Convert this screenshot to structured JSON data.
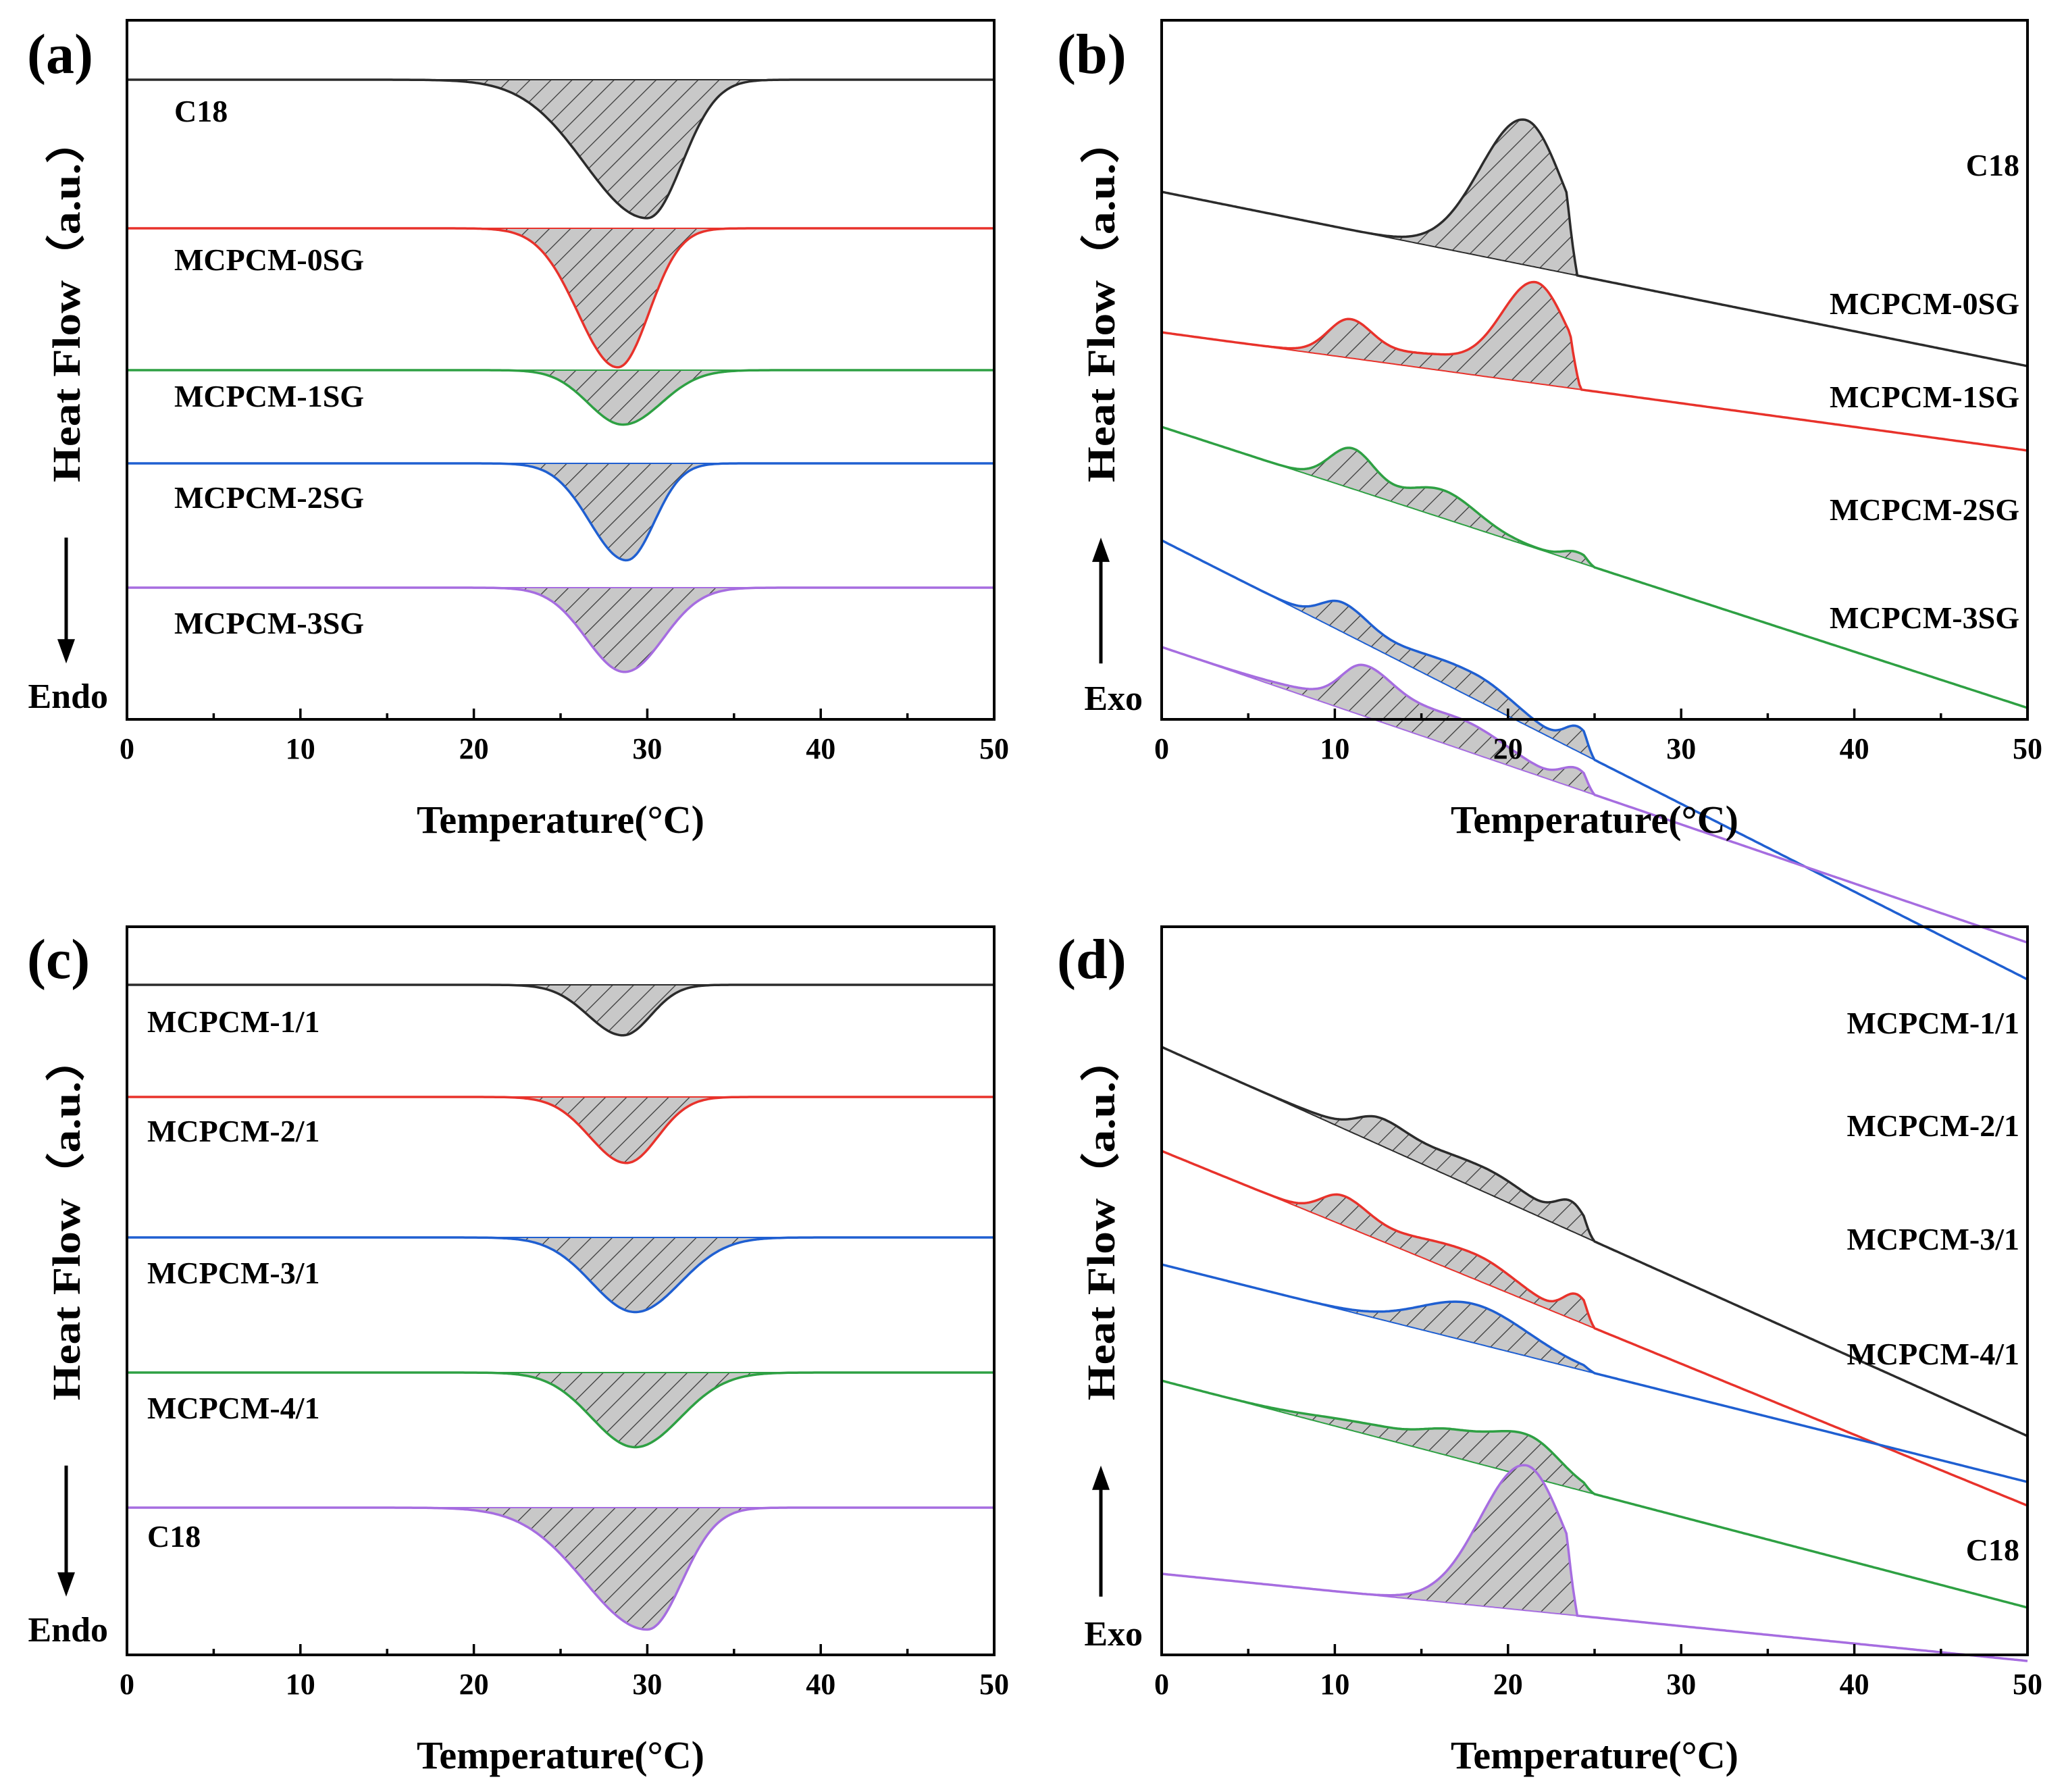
{
  "chart_data": [
    {
      "type": "line",
      "panel": "(a)",
      "xlabel": "Temperature(°C)",
      "ylabel": "Heat Flow（a.u.）",
      "direction": "Endo",
      "xlim": [
        0,
        50
      ],
      "xticks": [
        0,
        10,
        20,
        30,
        40,
        50
      ],
      "grid": false,
      "series": [
        {
          "name": "C18",
          "color": "#2b2b2b",
          "baseline": 0,
          "peaks": [
            {
              "t": 30.0,
              "h": -1.0,
              "wl": 3.6,
              "wr": 2.0
            }
          ]
        },
        {
          "name": "MCPCM-0SG",
          "color": "#e8322b",
          "baseline": -1.0,
          "peaks": [
            {
              "t": 28.3,
              "h": -0.98,
              "wl": 2.3,
              "wr": 1.8
            }
          ]
        },
        {
          "name": "MCPCM-1SG",
          "color": "#2ea043",
          "baseline": -2.0,
          "peaks": [
            {
              "t": 28.6,
              "h": -0.62,
              "wl": 2.0,
              "wr": 2.2
            }
          ]
        },
        {
          "name": "MCPCM-2SG",
          "color": "#1f5fd1",
          "baseline": -2.65,
          "peaks": [
            {
              "t": 28.8,
              "h": -0.82,
              "wl": 2.1,
              "wr": 1.6
            }
          ]
        },
        {
          "name": "MCPCM-3SG",
          "color": "#a66de0",
          "baseline": -3.5,
          "peaks": [
            {
              "t": 28.7,
              "h": -0.78,
              "wl": 2.2,
              "wr": 2.2
            }
          ]
        }
      ]
    },
    {
      "type": "line",
      "panel": "(b)",
      "xlabel": "Temperature(°C)",
      "ylabel": "Heat Flow（a.u.）",
      "direction": "Exo",
      "xlim": [
        0,
        50
      ],
      "xticks": [
        0,
        10,
        20,
        30,
        40,
        50
      ],
      "grid": false,
      "series": [
        {
          "name": "C18",
          "color": "#2b2b2b",
          "baseline": 0,
          "slope": -0.0012,
          "cutoff": 24.0,
          "peaks": [
            {
              "t": 21.0,
              "h": 1.0,
              "wl": 2.6,
              "wr": 2.2
            }
          ]
        },
        {
          "name": "MCPCM-0SG",
          "color": "#e8322b",
          "baseline": -0.95,
          "slope": -0.001,
          "cutoff": 24.2,
          "peaks": [
            {
              "t": 10.8,
              "h": 0.28,
              "wl": 1.2,
              "wr": 1.3
            },
            {
              "t": 15.5,
              "h": 0.12,
              "wl": 3.5,
              "wr": 2.5
            },
            {
              "t": 21.6,
              "h": 0.85,
              "wl": 2.0,
              "wr": 1.8
            }
          ]
        },
        {
          "name": "MCPCM-1SG",
          "color": "#2ea043",
          "baseline": -1.6,
          "slope": -0.0032,
          "cutoff": 25.0,
          "peaks": [
            {
              "t": 11.0,
              "h": 0.45,
              "wl": 1.3,
              "wr": 1.3
            },
            {
              "t": 16.2,
              "h": 0.32,
              "wl": 2.0,
              "wr": 2.0
            },
            {
              "t": 24.0,
              "h": 0.11,
              "wl": 0.8,
              "wr": 0.8
            }
          ]
        },
        {
          "name": "MCPCM-2SG",
          "color": "#1f5fd1",
          "baseline": -2.3,
          "slope": -0.0052,
          "cutoff": 25.0,
          "peaks": [
            {
              "t": 10.4,
              "h": 0.3,
              "wl": 1.2,
              "wr": 1.5
            },
            {
              "t": 18.0,
              "h": 0.3,
              "wl": 4.0,
              "wr": 2.5
            },
            {
              "t": 24.1,
              "h": 0.28,
              "wl": 0.8,
              "wr": 0.8
            }
          ]
        },
        {
          "name": "MCPCM-3SG",
          "color": "#a66de0",
          "baseline": -3.1,
          "slope": -0.0035,
          "cutoff": 25.0,
          "peaks": [
            {
              "t": 11.6,
              "h": 0.4,
              "wl": 1.2,
              "wr": 1.6
            },
            {
              "t": 17.0,
              "h": 0.36,
              "wl": 5.0,
              "wr": 3.0
            },
            {
              "t": 24.0,
              "h": 0.22,
              "wl": 0.9,
              "wr": 0.8
            }
          ]
        }
      ]
    },
    {
      "type": "line",
      "panel": "(c)",
      "xlabel": "Temperature(°C)",
      "ylabel": "Heat Flow（a.u.）",
      "direction": "Endo",
      "xlim": [
        0,
        50
      ],
      "xticks": [
        0,
        10,
        20,
        30,
        40,
        50
      ],
      "grid": false,
      "series": [
        {
          "name": "MCPCM-1/1",
          "color": "#2b2b2b",
          "baseline": 0,
          "peaks": [
            {
              "t": 28.6,
              "h": -0.65,
              "wl": 2.0,
              "wr": 1.6
            }
          ]
        },
        {
          "name": "MCPCM-2/1",
          "color": "#e8322b",
          "baseline": -0.8,
          "peaks": [
            {
              "t": 28.8,
              "h": -0.85,
              "wl": 2.1,
              "wr": 1.8
            }
          ]
        },
        {
          "name": "MCPCM-3/1",
          "color": "#1f5fd1",
          "baseline": -1.8,
          "peaks": [
            {
              "t": 29.3,
              "h": -0.85,
              "wl": 2.5,
              "wr": 2.6
            }
          ]
        },
        {
          "name": "MCPCM-4/1",
          "color": "#2ea043",
          "baseline": -2.75,
          "peaks": [
            {
              "t": 29.3,
              "h": -0.85,
              "wl": 2.5,
              "wr": 2.6
            }
          ]
        },
        {
          "name": "C18",
          "color": "#a66de0",
          "baseline": -3.7,
          "peaks": [
            {
              "t": 30.0,
              "h": -0.95,
              "wl": 3.6,
              "wr": 2.0
            }
          ]
        }
      ]
    },
    {
      "type": "line",
      "panel": "(d)",
      "xlabel": "Temperature(°C)",
      "ylabel": "Heat Flow（a.u.）",
      "direction": "Exo",
      "xlim": [
        0,
        50
      ],
      "xticks": [
        0,
        10,
        20,
        30,
        40,
        50
      ],
      "grid": false,
      "series": [
        {
          "name": "MCPCM-1/1",
          "color": "#2b2b2b",
          "baseline": 0,
          "slope": -0.0032,
          "cutoff": 25.0,
          "peaks": [
            {
              "t": 12.5,
              "h": 0.14,
              "wl": 1.2,
              "wr": 1.5
            },
            {
              "t": 18.5,
              "h": 0.2,
              "wl": 4.5,
              "wr": 3.0
            },
            {
              "t": 23.7,
              "h": 0.2,
              "wl": 0.9,
              "wr": 0.8
            }
          ]
        },
        {
          "name": "MCPCM-2/1",
          "color": "#e8322b",
          "baseline": -0.75,
          "slope": -0.0042,
          "cutoff": 25.0,
          "peaks": [
            {
              "t": 10.4,
              "h": 0.3,
              "wl": 1.2,
              "wr": 1.5
            },
            {
              "t": 18.0,
              "h": 0.3,
              "wl": 4.0,
              "wr": 2.5
            },
            {
              "t": 24.0,
              "h": 0.3,
              "wl": 0.8,
              "wr": 0.8
            }
          ]
        },
        {
          "name": "MCPCM-3/1",
          "color": "#1f5fd1",
          "baseline": -1.6,
          "slope": -0.0028,
          "cutoff": 25.0,
          "peaks": [
            {
              "t": 18.0,
              "h": 0.5,
              "wl": 3.0,
              "wr": 3.2
            }
          ]
        },
        {
          "name": "MCPCM-4/1",
          "color": "#2ea043",
          "baseline": -2.45,
          "slope": -0.0028,
          "cutoff": 25.0,
          "peaks": [
            {
              "t": 12.0,
              "h": 0.12,
              "wl": 3.0,
              "wr": 2.0
            },
            {
              "t": 16.8,
              "h": 0.3,
              "wl": 2.0,
              "wr": 2.5
            },
            {
              "t": 21.3,
              "h": 0.45,
              "wl": 2.0,
              "wr": 1.8
            }
          ]
        },
        {
          "name": "C18",
          "color": "#a66de0",
          "baseline": -3.8,
          "slope": -0.0006,
          "cutoff": 24.0,
          "peaks": [
            {
              "t": 21.0,
              "h": 1.0,
              "wl": 2.6,
              "wr": 2.2
            }
          ]
        }
      ]
    }
  ]
}
